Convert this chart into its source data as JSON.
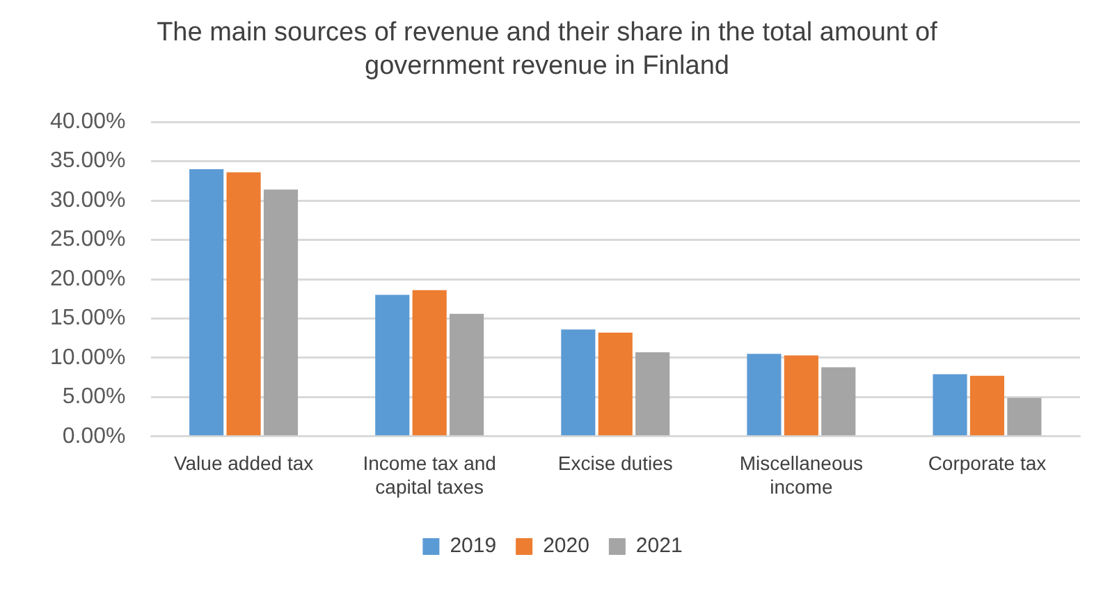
{
  "chart_data": {
    "type": "bar",
    "title": "The main sources of revenue and their share in the total amount of government revenue in Finland",
    "categories": [
      "Value added tax",
      "Income tax and capital taxes",
      "Excise duties",
      "Miscellaneous income",
      "Corporate tax"
    ],
    "series": [
      {
        "name": "2019",
        "color": "#5b9bd5",
        "values": [
          34.0,
          18.0,
          13.6,
          10.5,
          7.9
        ]
      },
      {
        "name": "2020",
        "color": "#ed7d31",
        "values": [
          33.6,
          18.6,
          13.2,
          10.3,
          7.7
        ]
      },
      {
        "name": "2021",
        "color": "#a5a5a5",
        "values": [
          31.4,
          15.6,
          10.7,
          8.8,
          4.9
        ]
      }
    ],
    "ylim": [
      0,
      40
    ],
    "yticks": [
      {
        "value": 0,
        "label": "0.00%"
      },
      {
        "value": 5,
        "label": "5.00%"
      },
      {
        "value": 10,
        "label": "10.00%"
      },
      {
        "value": 15,
        "label": "15.00%"
      },
      {
        "value": 20,
        "label": "20.00%"
      },
      {
        "value": 25,
        "label": "25.00%"
      },
      {
        "value": 30,
        "label": "30.00%"
      },
      {
        "value": 35,
        "label": "35.00%"
      },
      {
        "value": 40,
        "label": "40.00%"
      }
    ],
    "grid": "y",
    "legend": "bottom"
  }
}
